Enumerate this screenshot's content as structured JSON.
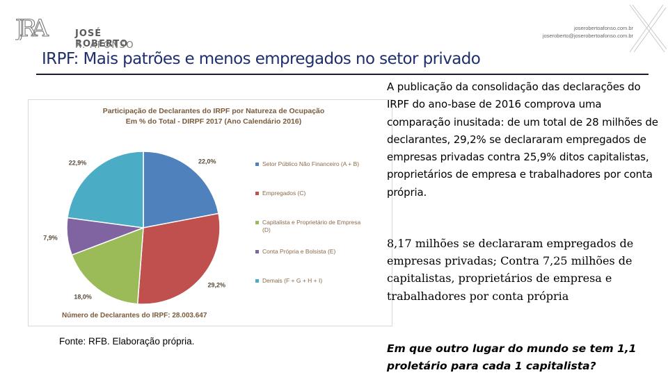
{
  "header": {
    "logo_monogram": "JRA",
    "logo_name": "JOSÉ ROBERTO",
    "logo_sub": "R. AFONSO",
    "contact_site": "joserobertoafonso.com.br",
    "contact_email": "joseroberto@joserobertoafonso.com.br"
  },
  "slide": {
    "title": "IRPF: Mais patrões e menos empregados no setor privado",
    "source": "Fonte: RFB. Elaboração própria.",
    "paragraph1": "A publicação da consolidação das declarações do IRPF do ano-base de 2016 comprova uma comparação inusitada: de um total de 28 milhões de declarantes, 29,2% se declararam empregados de empresas privadas contra 25,9% ditos capitalistas, proprietários de empresa e trabalhadores por conta própria.",
    "paragraph2": "8,17 milhões se declararam empregados de empresas privadas; Contra 7,25 milhões de capitalistas, proprietários de empresa e trabalhadores por conta própria",
    "paragraph3": "Em que outro lugar do mundo se tem 1,1 proletário para cada 1 capitalista?"
  },
  "chart_data": {
    "type": "pie",
    "title_line1": "Participação de Declarantes do IRPF por Natureza de Ocupação",
    "title_line2": "Em % do Total - DIRPF 2017 (Ano Calendário 2016)",
    "footer": "Número de Declarantes do IRPF: 28.003.647",
    "slices": [
      {
        "label": "Setor Público Não Financeiro (A + B)",
        "value": 22.0,
        "value_label": "22,0%",
        "color": "#4f81bd"
      },
      {
        "label": "Empregados (C)",
        "value": 29.2,
        "value_label": "29,2%",
        "color": "#c0504d"
      },
      {
        "label": "Capitalista e Proprietário de Empresa (D)",
        "value": 18.0,
        "value_label": "18,0%",
        "color": "#9bbb59"
      },
      {
        "label": "Conta Própria e Bolsista (E)",
        "value": 7.9,
        "value_label": "7,9%",
        "color": "#8064a2"
      },
      {
        "label": "Demais (F + G + H + I)",
        "value": 22.9,
        "value_label": "22,9%",
        "color": "#4bacc6"
      }
    ]
  },
  "colors": {
    "title": "#1f2f6b",
    "chart_title": "#7a5a3a",
    "legend_text": "#8a6a4a"
  }
}
